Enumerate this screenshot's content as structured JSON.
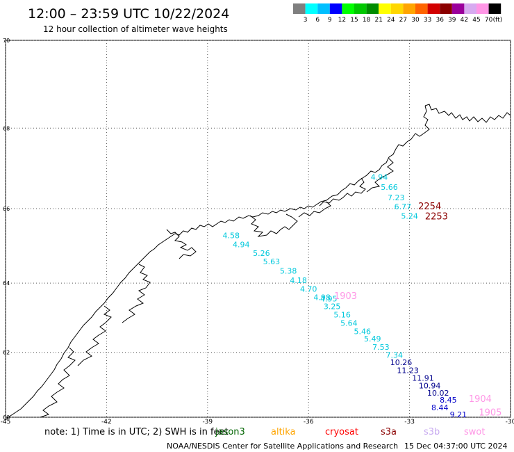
{
  "header": {
    "title": "12:00 – 23:59 UTC 10/22/2024",
    "subtitle": "12 hour collection of altimeter wave heights"
  },
  "colorbar": {
    "colors": [
      "#7f7f7f",
      "#00ffff",
      "#00bfff",
      "#0000ff",
      "#00ff00",
      "#00c800",
      "#008c00",
      "#ffff00",
      "#ffd700",
      "#ffa500",
      "#ff6400",
      "#d20000",
      "#8b0000",
      "#9b009b",
      "#d7aaf0",
      "#ff96e6",
      "#000000"
    ],
    "labels": [
      "3",
      "6",
      "9",
      "12",
      "15",
      "18",
      "21",
      "24",
      "27",
      "30",
      "33",
      "36",
      "39",
      "42",
      "45",
      "70"
    ],
    "unit": "(ft)"
  },
  "axes": {
    "lon_ticks": [
      "-45",
      "-42",
      "-39",
      "-36",
      "-33",
      "-30"
    ],
    "lat_ticks": [
      "70",
      "68",
      "66",
      "64",
      "62",
      "60"
    ]
  },
  "tracks": [
    {
      "satellite": "jason3",
      "color": "#00c8dc",
      "points": [
        {
          "label": "4.94",
          "lat": 66.74,
          "lon": -33.9
        },
        {
          "label": "5.66",
          "lat": 66.48,
          "lon": -33.6
        },
        {
          "label": "7.23",
          "lat": 66.22,
          "lon": -33.4
        },
        {
          "label": "6.77",
          "lat": 65.98,
          "lon": -33.2
        },
        {
          "label": "5.24",
          "lat": 65.74,
          "lon": -33.0
        },
        {
          "label": "4.58",
          "lat": 65.22,
          "lon": -38.3
        },
        {
          "label": "4.94",
          "lat": 64.98,
          "lon": -38.0
        },
        {
          "label": "5.26",
          "lat": 64.75,
          "lon": -37.4
        },
        {
          "label": "5.63",
          "lat": 64.52,
          "lon": -37.1
        },
        {
          "label": "5.38",
          "lat": 64.26,
          "lon": -36.6
        },
        {
          "label": "4.18",
          "lat": 64.0,
          "lon": -36.3
        },
        {
          "label": "4.70",
          "lat": 63.76,
          "lon": -36.0
        },
        {
          "label": "4.98",
          "lat": 63.52,
          "lon": -35.6
        },
        {
          "label": "4.95",
          "lat": 63.48,
          "lon": -35.4
        },
        {
          "label": "3.25",
          "lat": 63.26,
          "lon": -35.3
        },
        {
          "label": "5.16",
          "lat": 63.02,
          "lon": -35.0
        },
        {
          "label": "5.64",
          "lat": 62.78,
          "lon": -34.8
        },
        {
          "label": "5.46",
          "lat": 62.54,
          "lon": -34.4
        },
        {
          "label": "5.49",
          "lat": 62.32,
          "lon": -34.1
        },
        {
          "label": "7.53",
          "lat": 62.08,
          "lon": -33.85
        },
        {
          "label": "7.34",
          "lat": 61.84,
          "lon": -33.45
        }
      ]
    },
    {
      "satellite": "jason3",
      "color": "#00008c",
      "points": [
        {
          "label": "10.26",
          "lat": 61.62,
          "lon": -33.25
        },
        {
          "label": "11.23",
          "lat": 61.38,
          "lon": -33.05
        },
        {
          "label": "11.91",
          "lat": 61.14,
          "lon": -32.6
        },
        {
          "label": "10.94",
          "lat": 60.9,
          "lon": -32.4
        },
        {
          "label": "10.02",
          "lat": 60.68,
          "lon": -32.15
        }
      ]
    },
    {
      "satellite": "jason3",
      "color": "#0000c8",
      "points": [
        {
          "label": "8.45",
          "lat": 60.46,
          "lon": -31.85
        },
        {
          "label": "8.44",
          "lat": 60.22,
          "lon": -32.1
        },
        {
          "label": "9.21",
          "lat": 60.0,
          "lon": -31.55
        }
      ]
    }
  ],
  "pass_labels": [
    {
      "text": "2254",
      "color": "#8b0000",
      "lat": 65.98,
      "lon": -32.4
    },
    {
      "text": "2253",
      "color": "#8b0000",
      "lat": 65.72,
      "lon": -32.2
    },
    {
      "text": "1903",
      "color": "#ff96e6",
      "lat": 63.55,
      "lon": -34.9
    },
    {
      "text": "1904",
      "color": "#ff96e6",
      "lat": 60.48,
      "lon": -30.9
    },
    {
      "text": "1905",
      "color": "#ff96e6",
      "lat": 60.06,
      "lon": -30.6
    }
  ],
  "footer": {
    "note": "note:  1) Time is in UTC; 2) SWH is in feet",
    "satellites": [
      {
        "name": "jason3",
        "color": "#006400"
      },
      {
        "name": "altika",
        "color": "#ffa500"
      },
      {
        "name": "cryosat",
        "color": "#ff0000"
      },
      {
        "name": "s3a",
        "color": "#8b0000"
      },
      {
        "name": "s3b",
        "color": "#c8aaf0"
      },
      {
        "name": "swot",
        "color": "#ff96e6"
      }
    ],
    "credit": "NOAA/NESDIS Center for Satellite Applications and Research",
    "timestamp": "15 Dec 04:37:00 UTC 2024"
  }
}
